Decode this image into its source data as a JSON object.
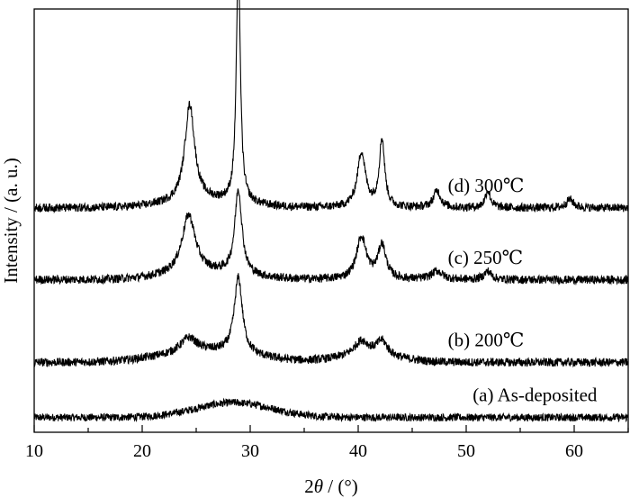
{
  "chart_data": {
    "type": "line",
    "title": "",
    "xlabel_prefix": "2",
    "xlabel_symbol": "θ",
    "xlabel_suffix": " / (°)",
    "ylabel": "Intensity / (a. u.)",
    "xlim": [
      10,
      65
    ],
    "ylim": [
      0,
      100
    ],
    "x_ticks": [
      10,
      20,
      30,
      40,
      50,
      60
    ],
    "y_ticks": [],
    "grid": false,
    "legend": "none",
    "line_color": "#000000",
    "note": "Stacked XRD patterns, arbitrary intensity units; values are vertically offset traces read from the figure.",
    "series": [
      {
        "name": "(a) As-deposited",
        "label_at_x": 50.6,
        "baseline": 3.5,
        "noise": 0.9,
        "broad": [
          {
            "x": 28.5,
            "h": 3.5,
            "w": 5.0
          }
        ],
        "peaks": []
      },
      {
        "name": "(b) 200℃",
        "label_at_x": 48.3,
        "baseline": 16.5,
        "noise": 1.0,
        "broad": [
          {
            "x": 26.0,
            "h": 2.5,
            "w": 6.0
          },
          {
            "x": 41.0,
            "h": 1.5,
            "w": 4.0
          }
        ],
        "peaks": [
          {
            "x": 24.3,
            "h": 3.5,
            "w": 0.9
          },
          {
            "x": 28.9,
            "h": 18.0,
            "w": 0.45
          },
          {
            "x": 40.3,
            "h": 3.5,
            "w": 0.8
          },
          {
            "x": 42.2,
            "h": 3.5,
            "w": 0.6
          }
        ]
      },
      {
        "name": "(c) 250℃",
        "label_at_x": 48.3,
        "baseline": 36.0,
        "noise": 1.0,
        "broad": [
          {
            "x": 26.0,
            "h": 1.5,
            "w": 5.0
          }
        ],
        "peaks": [
          {
            "x": 24.3,
            "h": 14.0,
            "w": 0.75
          },
          {
            "x": 28.9,
            "h": 20.0,
            "w": 0.4
          },
          {
            "x": 40.3,
            "h": 10.0,
            "w": 0.55
          },
          {
            "x": 42.2,
            "h": 8.0,
            "w": 0.45
          },
          {
            "x": 47.3,
            "h": 2.0,
            "w": 0.6
          },
          {
            "x": 52.0,
            "h": 2.0,
            "w": 0.4
          }
        ]
      },
      {
        "name": "(d) 300℃",
        "label_at_x": 48.3,
        "baseline": 53.0,
        "noise": 1.0,
        "broad": [
          {
            "x": 26.0,
            "h": 1.5,
            "w": 5.0
          }
        ],
        "peaks": [
          {
            "x": 24.4,
            "h": 23.0,
            "w": 0.55
          },
          {
            "x": 28.9,
            "h": 58.0,
            "w": 0.22
          },
          {
            "x": 40.3,
            "h": 13.0,
            "w": 0.45
          },
          {
            "x": 42.2,
            "h": 16.0,
            "w": 0.3
          },
          {
            "x": 47.3,
            "h": 4.0,
            "w": 0.4
          },
          {
            "x": 52.0,
            "h": 4.0,
            "w": 0.3
          },
          {
            "x": 59.6,
            "h": 2.0,
            "w": 0.4
          }
        ]
      }
    ]
  }
}
